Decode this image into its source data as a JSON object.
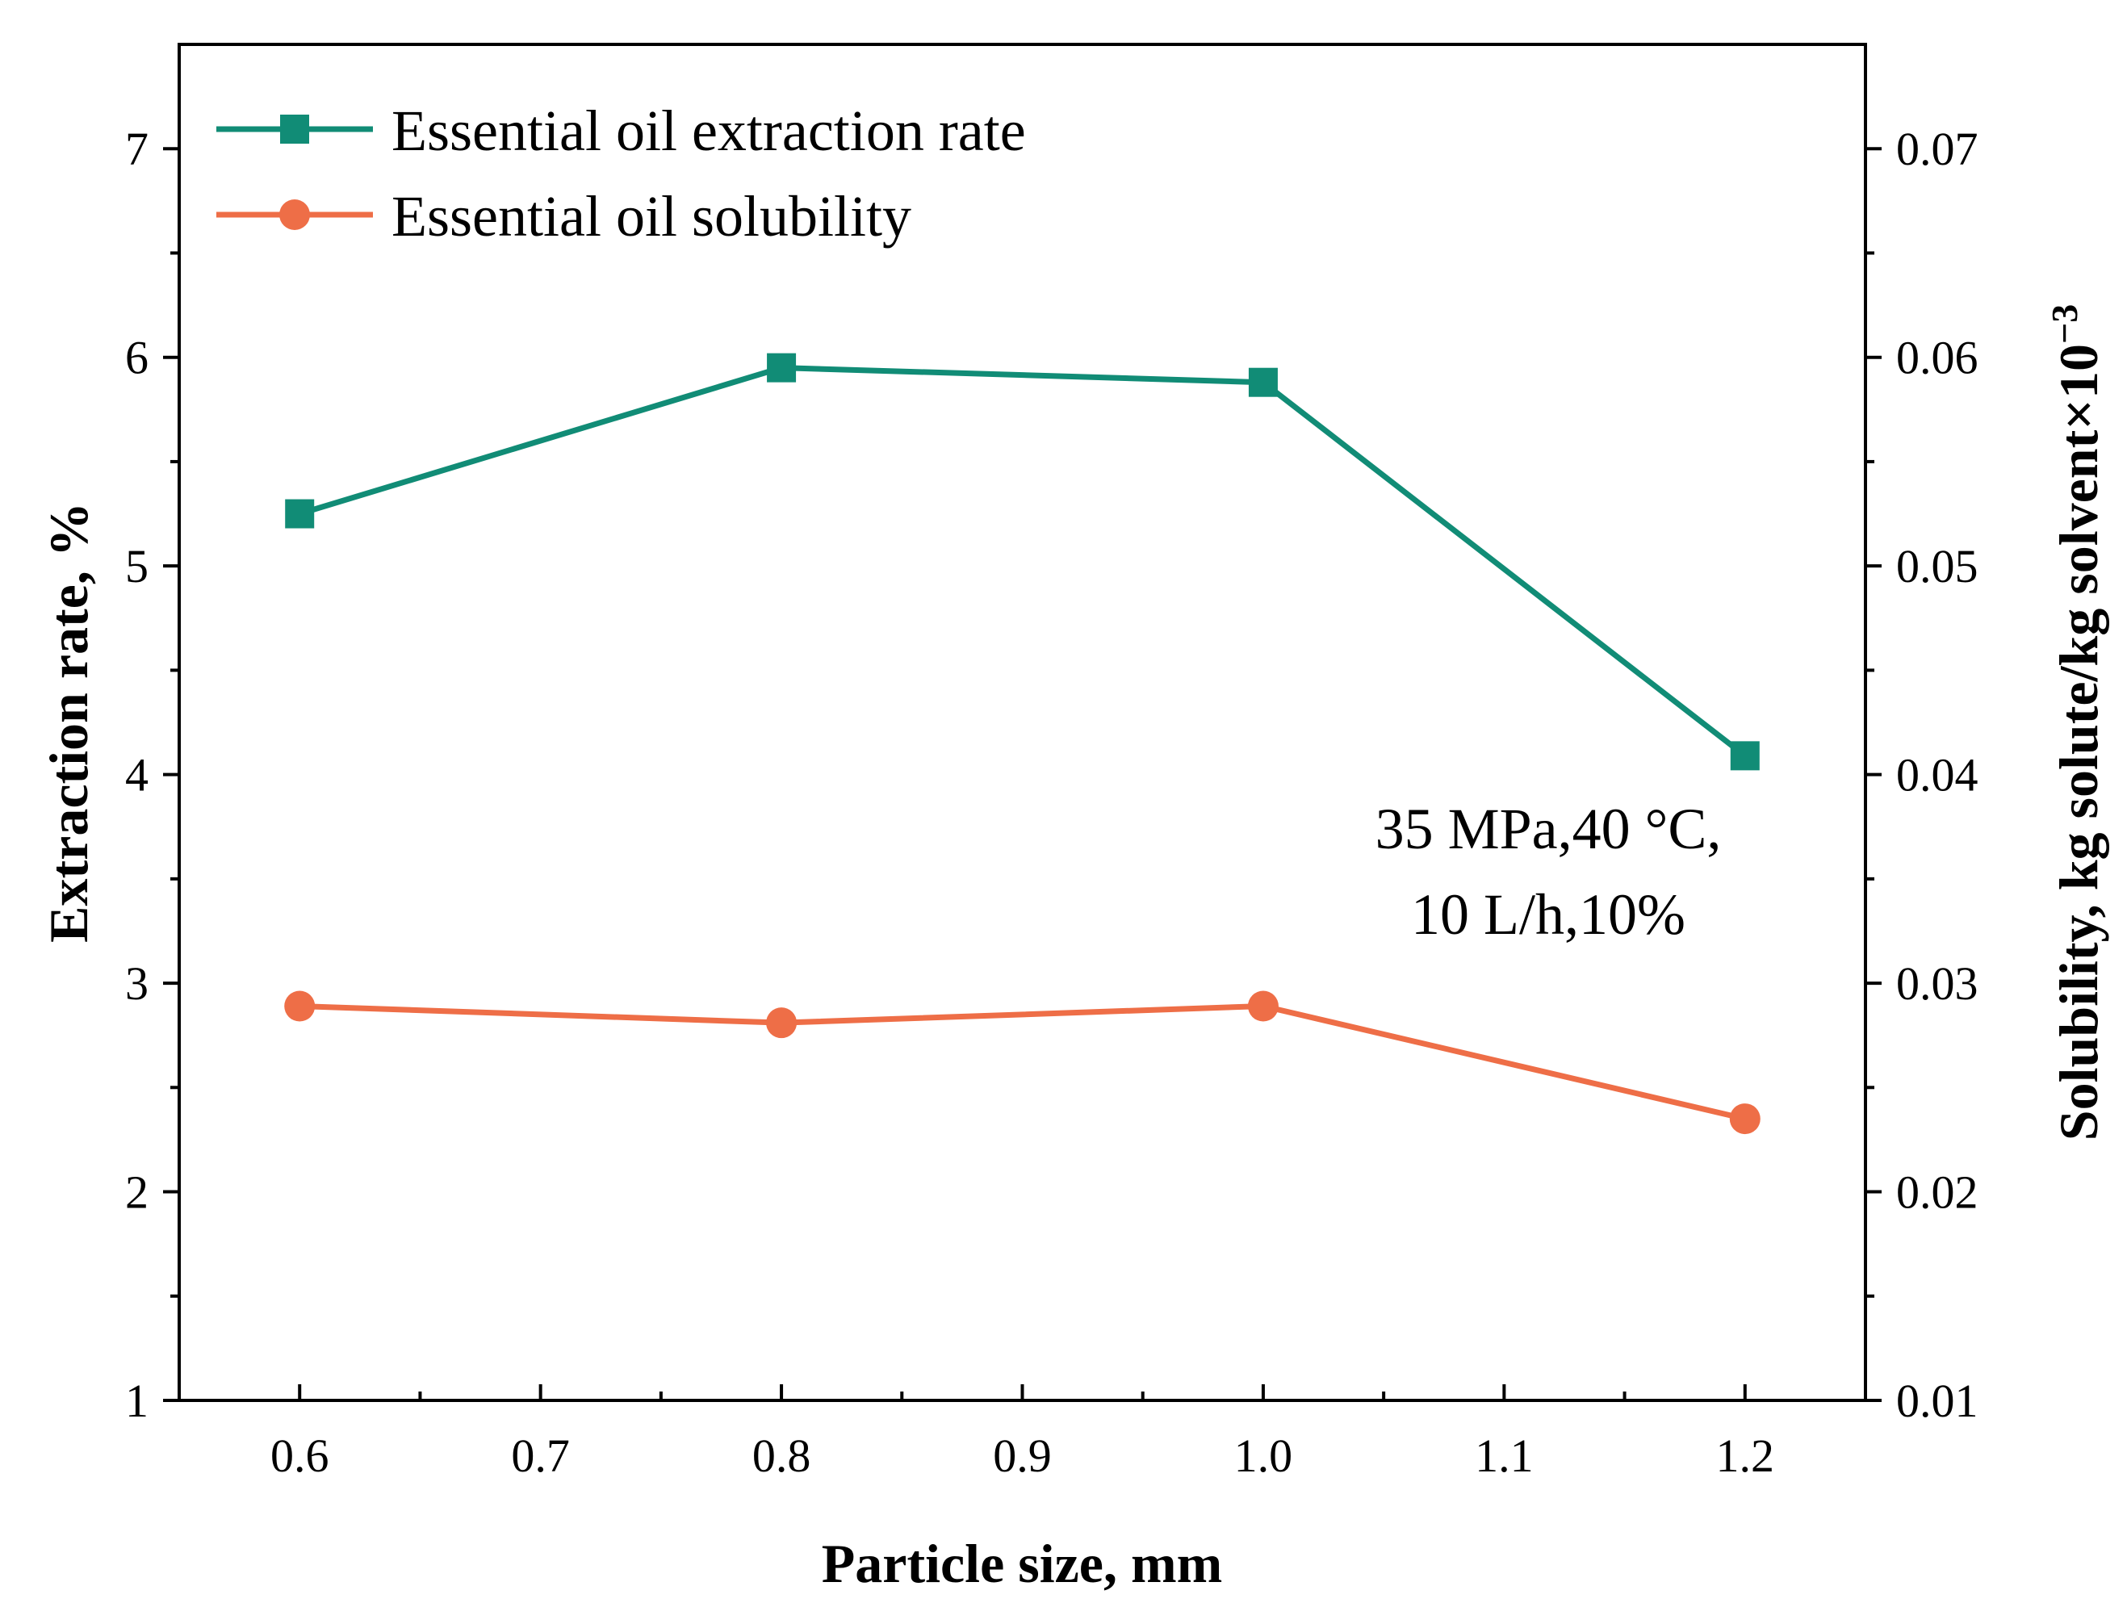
{
  "chart_data": {
    "type": "line",
    "x": [
      0.6,
      0.8,
      1.0,
      1.2
    ],
    "xlabel": "Particle size, mm",
    "xlim": [
      0.55,
      1.25
    ],
    "xticks": [
      "0.6",
      "0.7",
      "0.8",
      "0.9",
      "1.0",
      "1.1",
      "1.2"
    ],
    "ylabel": "Extraction rate, %",
    "ylim": [
      1,
      7.5
    ],
    "yticks": [
      "1",
      "2",
      "3",
      "4",
      "5",
      "6",
      "7"
    ],
    "y2label": "Solubility, kg solute/kg solvent×10",
    "y2label_exponent": "−3",
    "y2lim": [
      0.01,
      0.075
    ],
    "y2ticks": [
      "0.01",
      "0.02",
      "0.03",
      "0.04",
      "0.05",
      "0.06",
      "0.07"
    ],
    "series": [
      {
        "name": "Essential oil extraction rate",
        "axis": "left",
        "marker": "square",
        "color": "#118c76",
        "values": [
          5.25,
          5.95,
          5.88,
          4.09
        ]
      },
      {
        "name": "Essential oil solubility",
        "axis": "right",
        "marker": "circle",
        "color": "#ee6e47",
        "values": [
          0.0289,
          0.0281,
          0.0289,
          0.0235
        ]
      }
    ],
    "annotation": [
      "35 MPa,40 °C,",
      "10 L/h,10%"
    ],
    "legend_position": "top-left"
  }
}
